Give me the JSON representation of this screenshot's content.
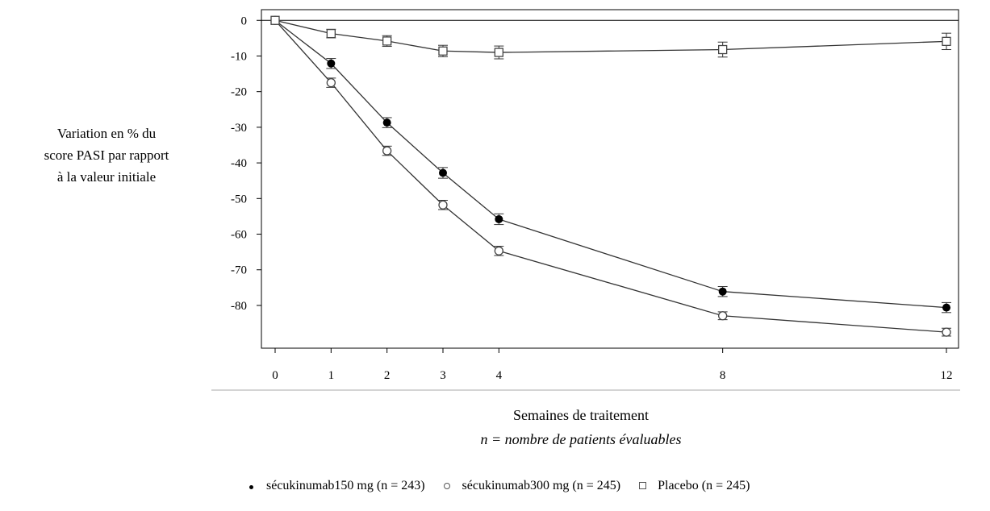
{
  "chart_data": {
    "type": "line",
    "x": [
      0,
      1,
      2,
      3,
      4,
      8,
      12
    ],
    "xticks": [
      "0",
      "1",
      "2",
      "3",
      "4",
      "8",
      "12"
    ],
    "yticks": [
      "0",
      "-10",
      "-20",
      "-30",
      "-40",
      "-50",
      "-60",
      "-70",
      "-80"
    ],
    "ytick_values": [
      0,
      -10,
      -20,
      -30,
      -40,
      -50,
      -60,
      -70,
      -80
    ],
    "xlim": [
      0,
      12
    ],
    "ylim": [
      -92,
      3
    ],
    "ylabel_lines": [
      "Variation en % du",
      "score PASI par rapport",
      "à la valeur initiale"
    ],
    "xlabel": "Semaines  de traitement",
    "xlabel_sub": "n = nombre de patients évaluables",
    "grid": false,
    "legend_position": "bottom",
    "series": [
      {
        "name": "sécukinumab150  mg (n = 243)",
        "marker": "filled-circle",
        "values": [
          0,
          -12.1,
          -28.7,
          -42.8,
          -55.8,
          -76.1,
          -80.6
        ],
        "err": [
          0,
          1.4,
          1.4,
          1.5,
          1.5,
          1.4,
          1.4
        ]
      },
      {
        "name": "sécukinumab300  mg (n = 245)",
        "marker": "open-circle",
        "values": [
          0,
          -17.5,
          -36.6,
          -51.8,
          -64.7,
          -82.9,
          -87.5
        ],
        "err": [
          0,
          1.3,
          1.3,
          1.3,
          1.3,
          1.1,
          1.1
        ]
      },
      {
        "name": "Placebo  (n = 245)",
        "marker": "open-square",
        "values": [
          0,
          -3.7,
          -5.8,
          -8.6,
          -9.0,
          -8.2,
          -5.9
        ],
        "err": [
          0,
          1.2,
          1.5,
          1.6,
          1.8,
          2.1,
          2.3
        ]
      }
    ]
  }
}
